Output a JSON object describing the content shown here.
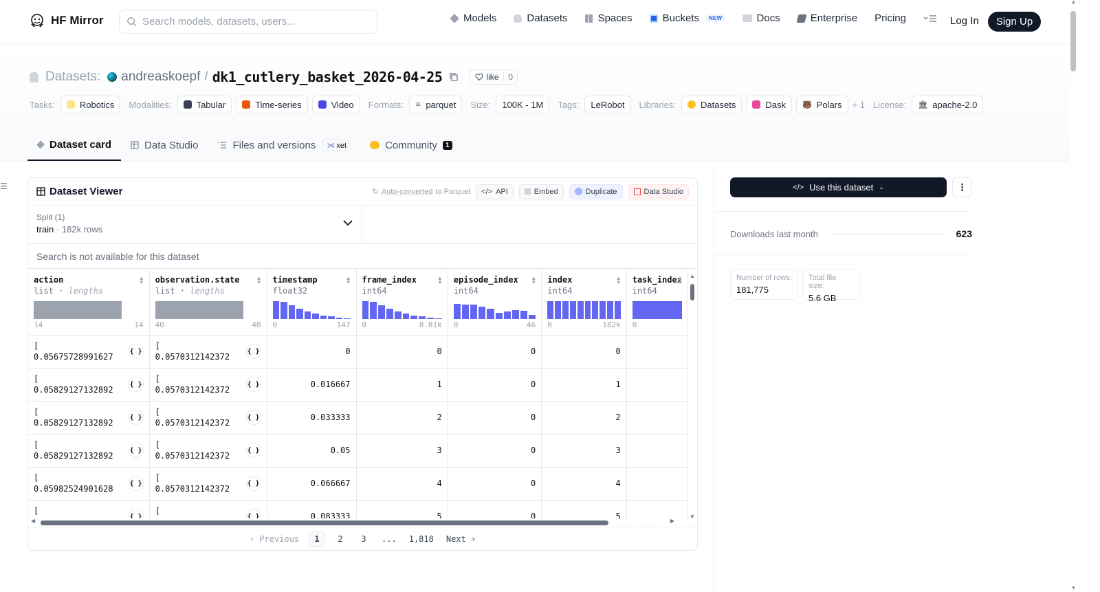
{
  "nav": {
    "brand": "HF Mirror",
    "search_placeholder": "Search models, datasets, users...",
    "links": [
      {
        "label": "Models",
        "icon": "models-icon",
        "color": "#9ca3af"
      },
      {
        "label": "Datasets",
        "icon": "datasets-icon",
        "color": "#d1d5db"
      },
      {
        "label": "Spaces",
        "icon": "spaces-icon",
        "color": "#9ca3af"
      },
      {
        "label": "Buckets",
        "icon": "buckets-icon",
        "color": "#2563eb",
        "badge": "NEW"
      },
      {
        "label": "Docs",
        "icon": "docs-icon",
        "color": "#9ca3af"
      },
      {
        "label": "Enterprise",
        "icon": "enterprise-icon",
        "color": "#6b7280"
      },
      {
        "label": "Pricing"
      }
    ],
    "login": "Log In",
    "signup": "Sign Up"
  },
  "header": {
    "section_label": "Datasets:",
    "owner": "andreaskoepf",
    "name": "dk1_cutlery_basket_2026-04-25",
    "like_label": "like",
    "like_count": "0"
  },
  "tags": {
    "tasks_label": "Tasks:",
    "task": "Robotics",
    "modalities_label": "Modalities:",
    "modalities": [
      "Tabular",
      "Time-series",
      "Video"
    ],
    "formats_label": "Formats:",
    "format": "parquet",
    "size_label": "Size:",
    "size": "100K - 1M",
    "tags_label": "Tags:",
    "tag": "LeRobot",
    "libraries_label": "Libraries:",
    "libraries": [
      "Datasets",
      "Dask",
      "Polars"
    ],
    "more_libraries": "+ 1",
    "license_label": "License:",
    "license": "apache-2.0"
  },
  "tabs": {
    "card": "Dataset card",
    "studio": "Data Studio",
    "files": "Files and versions",
    "files_badge": "xet",
    "community": "Community",
    "community_count": "1"
  },
  "viewer": {
    "title": "Dataset Viewer",
    "autoconv_link": "Auto-converted",
    "autoconv_rest": " to Parquet",
    "api": "API",
    "embed": "Embed",
    "duplicate": "Duplicate",
    "data_studio": "Data Studio",
    "split_label": "Split (1)",
    "split_value": "train",
    "split_rows": "182k rows",
    "search_na": "Search is not available for this dataset",
    "columns": [
      {
        "name": "action",
        "type": "list",
        "type_note": "lengths",
        "min": "14",
        "max": "14",
        "hist": []
      },
      {
        "name": "observation.state",
        "type": "list",
        "type_note": "lengths",
        "min": "40",
        "max": "40",
        "hist": []
      },
      {
        "name": "timestamp",
        "type": "float32",
        "type_note": "",
        "min": "0",
        "max": "147",
        "hist": [
          1.0,
          0.95,
          0.78,
          0.58,
          0.42,
          0.3,
          0.2,
          0.14,
          0.09,
          0.05
        ]
      },
      {
        "name": "frame_index",
        "type": "int64",
        "type_note": "",
        "min": "0",
        "max": "8.81k",
        "hist": [
          1.0,
          0.95,
          0.78,
          0.58,
          0.42,
          0.3,
          0.2,
          0.14,
          0.09,
          0.05
        ]
      },
      {
        "name": "episode_index",
        "type": "int64",
        "type_note": "",
        "min": "0",
        "max": "46",
        "hist": [
          0.85,
          0.82,
          0.8,
          0.7,
          0.58,
          0.35,
          0.42,
          0.5,
          0.48,
          0.25
        ]
      },
      {
        "name": "index",
        "type": "int64",
        "type_note": "",
        "min": "0",
        "max": "182k",
        "hist": [
          1,
          1,
          1,
          1,
          1,
          1,
          1,
          1,
          1,
          1
        ]
      },
      {
        "name": "task_index",
        "type": "int64",
        "type_note": "",
        "min": "0",
        "max": "",
        "hist": [
          1
        ]
      }
    ],
    "rows": [
      {
        "action": "[ 0.056757289916276...",
        "state": "[ 0.05703121423721...",
        "timestamp": "0",
        "frame_index": "0",
        "episode_index": "0",
        "index": "0"
      },
      {
        "action": "[ 0.058291271328926...",
        "state": "[ 0.05703121423721...",
        "timestamp": "0.016667",
        "frame_index": "1",
        "episode_index": "0",
        "index": "1"
      },
      {
        "action": "[ 0.058291271328926...",
        "state": "[ 0.05703121423721...",
        "timestamp": "0.033333",
        "frame_index": "2",
        "episode_index": "0",
        "index": "2"
      },
      {
        "action": "[ 0.058291271328926...",
        "state": "[ 0.05703121423721...",
        "timestamp": "0.05",
        "frame_index": "3",
        "episode_index": "0",
        "index": "3"
      },
      {
        "action": "[ 0.059825249016284...",
        "state": "[ 0.05703121423721...",
        "timestamp": "0.066667",
        "frame_index": "4",
        "episode_index": "0",
        "index": "4"
      },
      {
        "action": "[",
        "state": "[",
        "timestamp": "0.083333",
        "frame_index": "5",
        "episode_index": "0",
        "index": "5"
      }
    ],
    "json_button_label": "{ }",
    "pager": {
      "prev": "Previous",
      "pages": [
        "1",
        "2",
        "3",
        "...",
        "1,818"
      ],
      "next": "Next"
    }
  },
  "sidebar": {
    "use_button": "Use this dataset",
    "downloads_label": "Downloads last month",
    "downloads_value": "623",
    "rows_label": "Number of rows:",
    "rows_value": "181,775",
    "size_label": "Total file size:",
    "size_value": "5.6 GB"
  }
}
